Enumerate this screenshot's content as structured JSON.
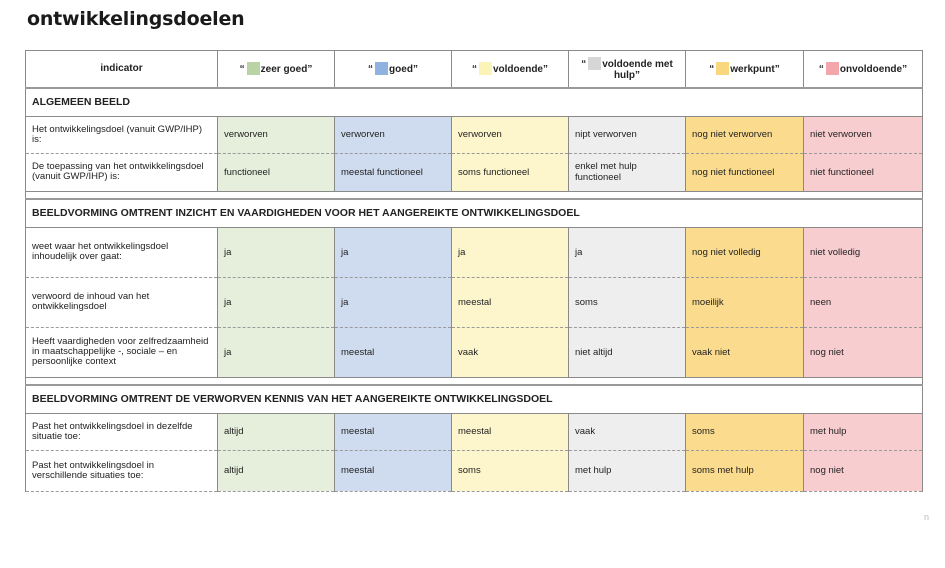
{
  "title": "ontwikkelingsdoelen",
  "header": {
    "indicator": "indicator",
    "levels": [
      {
        "label": "zeer goed",
        "color": "#b9d3a4",
        "prefix": "“",
        "suffix": "”"
      },
      {
        "label": "goed",
        "color": "#8fb2e0",
        "prefix": "“",
        "suffix": "”"
      },
      {
        "label": "voldoende",
        "color": "#fbf4b8",
        "prefix": "“",
        "suffix": "”"
      },
      {
        "label": "voldoende met hulp",
        "color": "#d6d6d6",
        "prefix": "“",
        "suffix": "”"
      },
      {
        "label": "werkpunt",
        "color": "#f9d77e",
        "prefix": "“",
        "suffix": "”"
      },
      {
        "label": "onvoldoende",
        "color": "#f3a6ac",
        "prefix": "“",
        "suffix": "”"
      }
    ]
  },
  "sections": [
    {
      "title": "ALGEMEEN BEELD",
      "rows": [
        {
          "indicator": "Het ontwikkelingsdoel (vanuit GWP/IHP) is:",
          "values": [
            "verworven",
            "verworven",
            "verworven",
            "nipt verworven",
            "nog niet verworven",
            "niet verworven"
          ]
        },
        {
          "indicator": "De toepassing van het ontwikkelingsdoel (vanuit GWP/IHP) is:",
          "values": [
            "functioneel",
            "meestal functioneel",
            "soms functioneel",
            "enkel met hulp functioneel",
            "nog niet functioneel",
            "niet functioneel"
          ]
        }
      ]
    },
    {
      "title": "BEELDVORMING OMTRENT INZICHT EN VAARDIGHEDEN VOOR HET AANGEREIKTE ONTWIKKELINGSDOEL",
      "rows": [
        {
          "indicator": "weet waar het ontwikkelingsdoel inhoudelijk over gaat:",
          "values": [
            "ja",
            "ja",
            "ja",
            "ja",
            "nog niet volledig",
            "niet volledig"
          ]
        },
        {
          "indicator": "verwoord de inhoud van het ontwikkelingsdoel",
          "values": [
            "ja",
            "ja",
            "meestal",
            "soms",
            "moeilijk",
            "neen"
          ]
        },
        {
          "indicator": "Heeft vaardigheden voor zelfredzaamheid in maatschappelijke -, sociale – en persoonlijke context",
          "values": [
            "ja",
            "meestal",
            "vaak",
            "niet altijd",
            "vaak niet",
            "nog niet"
          ]
        }
      ]
    },
    {
      "title": "BEELDVORMING OMTRENT DE VERWORVEN KENNIS VAN HET AANGEREIKTE ONTWIKKELINGSDOEL",
      "rows": [
        {
          "indicator": "Past het ontwikkelingsdoel in dezelfde situatie toe:",
          "values": [
            "altijd",
            "meestal",
            "meestal",
            "vaak",
            "soms",
            "met hulp"
          ]
        },
        {
          "indicator": "Past het ontwikkelingsdoel in verschillende situaties toe:",
          "values": [
            "altijd",
            "meestal",
            "soms",
            "met hulp",
            "soms met hulp",
            "nog niet"
          ]
        }
      ]
    }
  ]
}
